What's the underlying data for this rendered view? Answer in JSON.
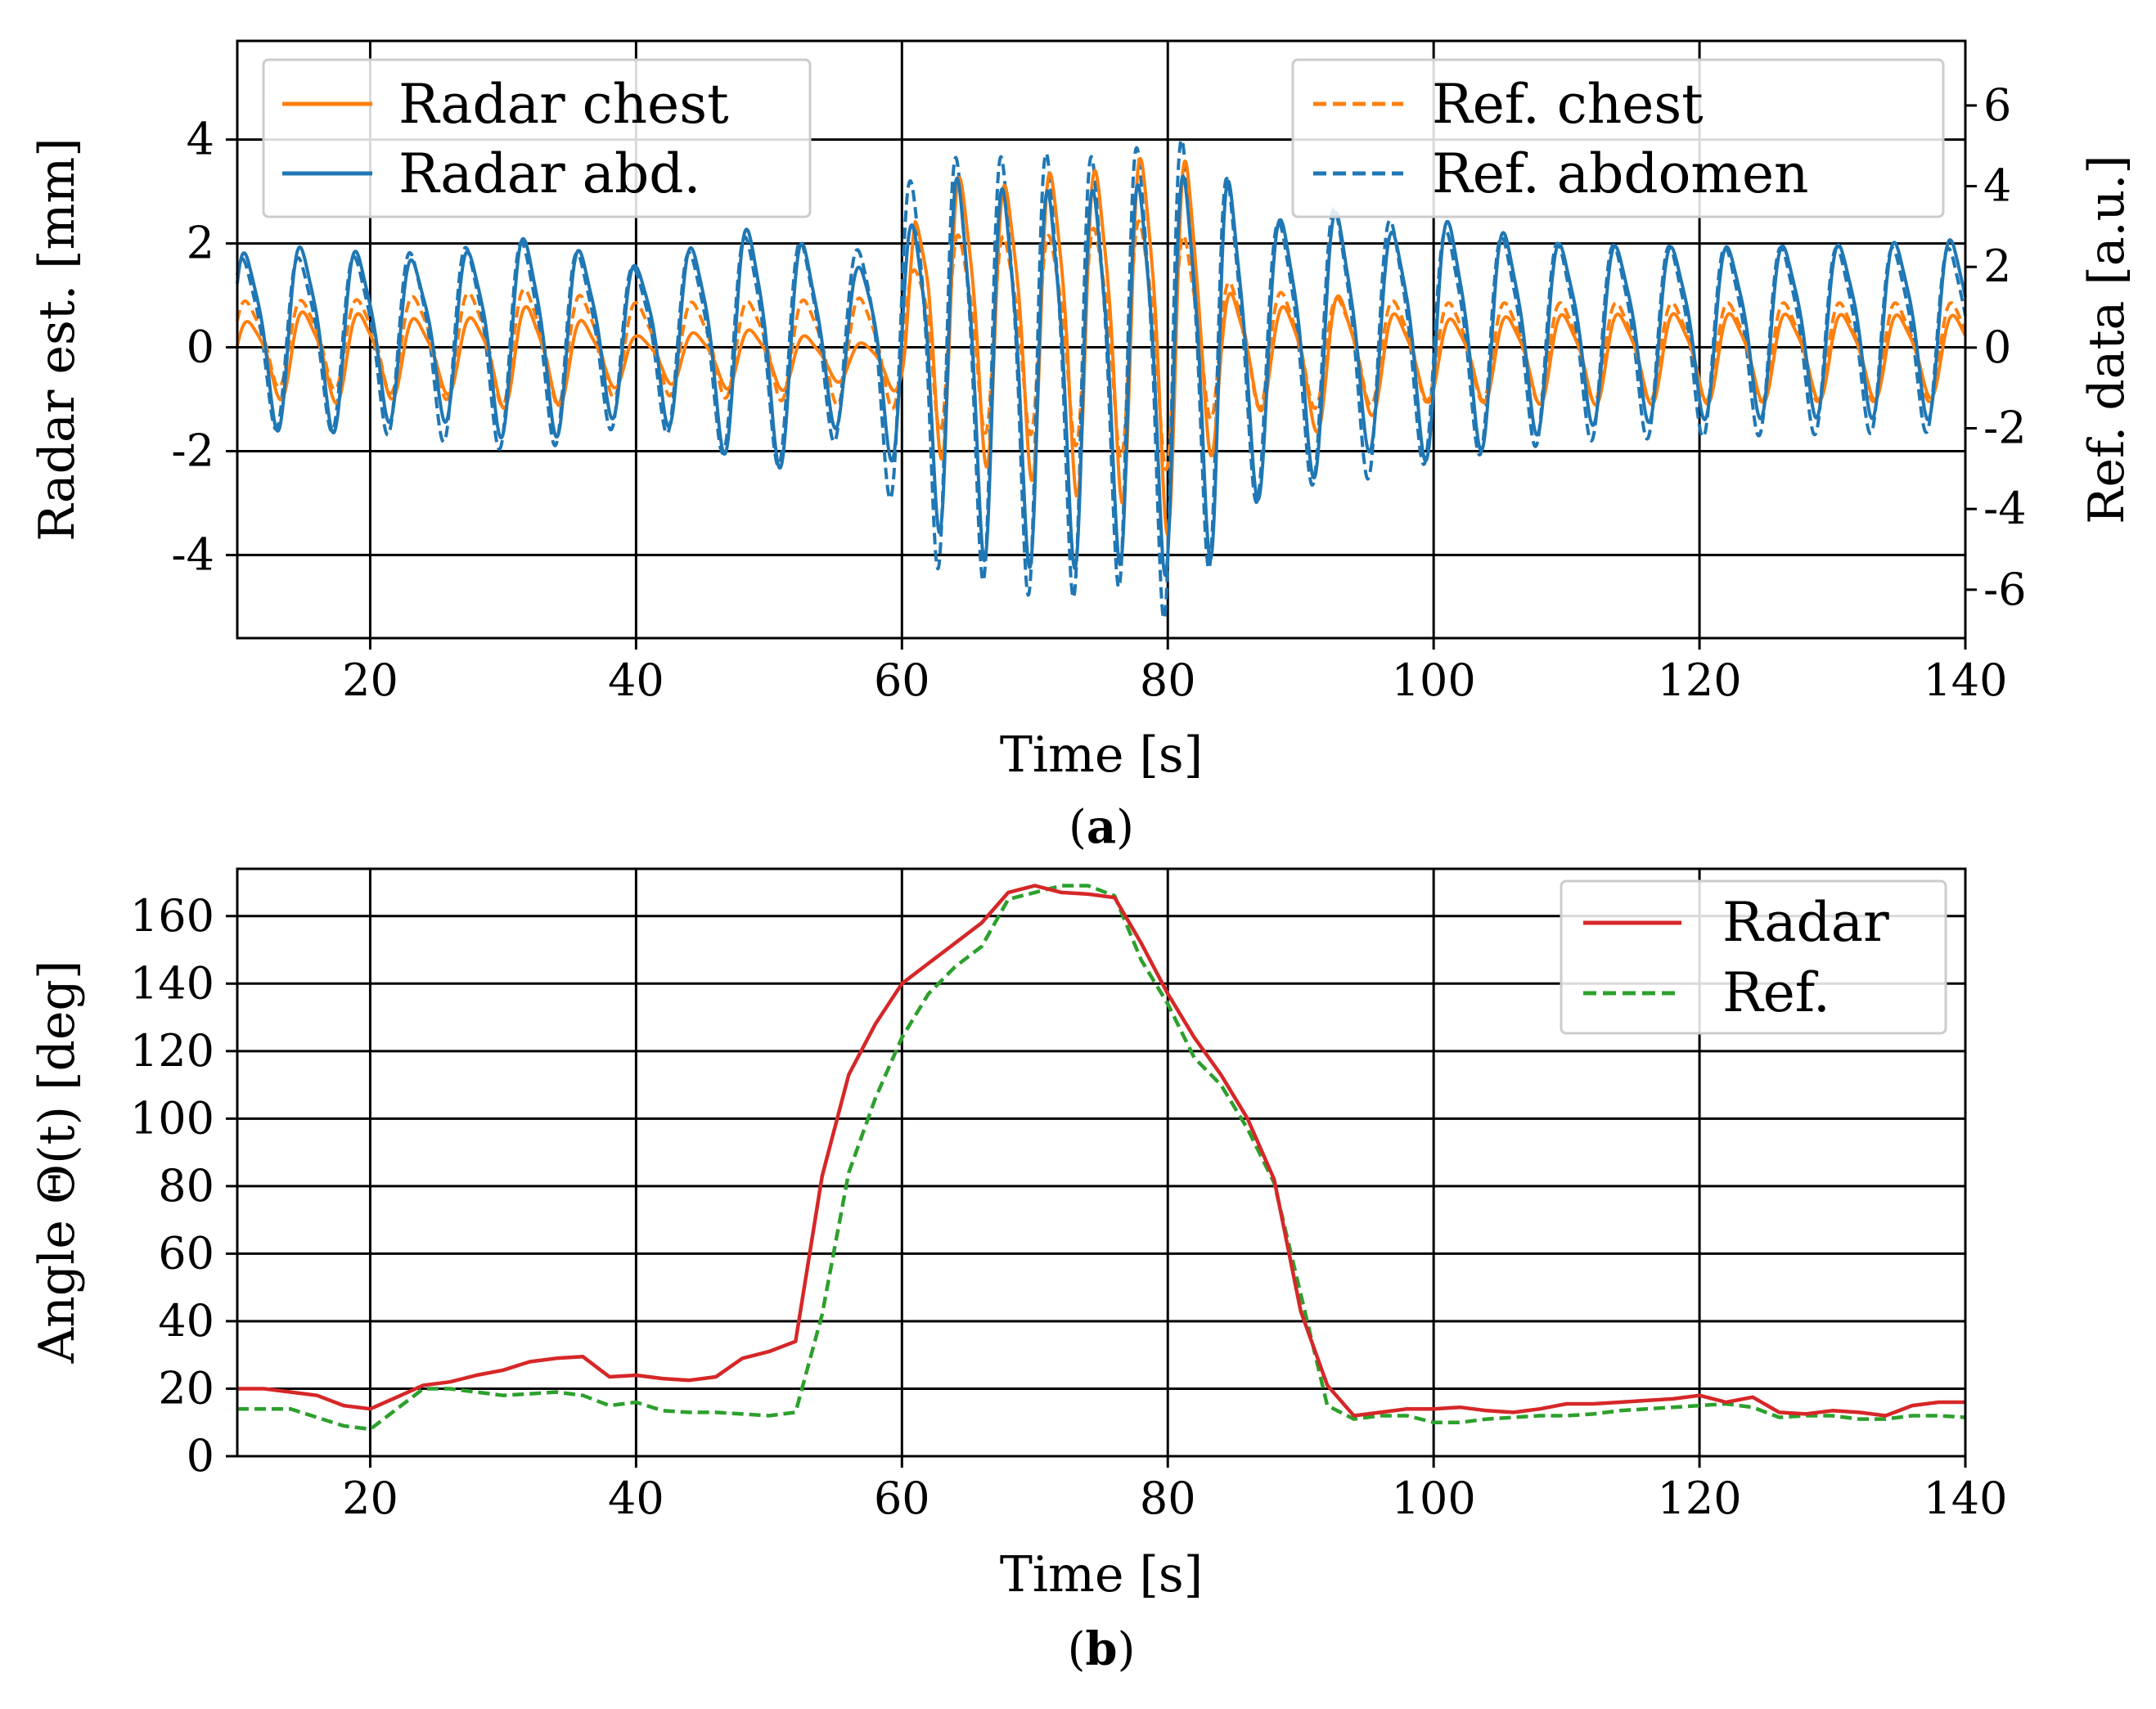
{
  "colors": {
    "orange": "#ff7f0e",
    "blue": "#1f77b4",
    "red": "#d62728",
    "green": "#2ca02c"
  },
  "chart_data": [
    {
      "type": "line",
      "caption_letter": "a",
      "xlabel": "Time [s]",
      "ylabel_left": "Radar est. [mm]",
      "ylabel_right": "Ref. data [a.u.]",
      "xlim": [
        10,
        140
      ],
      "ylim_left": [
        -5.6,
        5.9
      ],
      "ylim_right": [
        -7.2,
        7.6
      ],
      "x_ticks": [
        20,
        40,
        60,
        80,
        100,
        120,
        140
      ],
      "y_ticks_left": [
        -4,
        -2,
        0,
        2,
        4
      ],
      "y_ticks_left_labels": [
        "-4",
        "-2",
        "0",
        "2",
        "4"
      ],
      "y_ticks_right": [
        -6,
        -4,
        -2,
        0,
        2,
        4,
        6
      ],
      "y_ticks_right_labels": [
        "-6",
        "-4",
        "-2",
        "0",
        "2",
        "4",
        "6"
      ],
      "grid": true,
      "legend_left": [
        "Radar chest",
        "Radar abd."
      ],
      "legend_right": [
        "Ref. chest",
        "Ref. abdomen"
      ],
      "breath_period_s": [
        [
          10,
          4.2
        ],
        [
          58,
          4.2
        ],
        [
          62,
          3.4
        ],
        [
          84,
          3.4
        ],
        [
          88,
          4.2
        ],
        [
          140,
          4.2
        ]
      ],
      "series": [
        {
          "name": "Radar chest",
          "axis": "left",
          "color": "orange",
          "dash": "solid",
          "phase": 0.0,
          "envelope": [
            [
              10,
              0.7
            ],
            [
              14,
              1.0
            ],
            [
              18,
              1.0
            ],
            [
              26,
              0.8
            ],
            [
              32,
              1.2
            ],
            [
              40,
              0.5
            ],
            [
              50,
              0.7
            ],
            [
              56,
              0.4
            ],
            [
              60,
              0.6
            ],
            [
              61,
              2.8
            ],
            [
              64,
              3.2
            ],
            [
              68,
              3.1
            ],
            [
              72,
              3.6
            ],
            [
              76,
              3.6
            ],
            [
              80,
              4.3
            ],
            [
              82,
              4.0
            ],
            [
              84,
              1.4
            ],
            [
              88,
              1.1
            ],
            [
              92,
              1.6
            ],
            [
              96,
              1.1
            ],
            [
              100,
              0.9
            ],
            [
              110,
              1.0
            ],
            [
              120,
              1.0
            ],
            [
              140,
              0.9
            ]
          ],
          "center": [
            [
              10,
              -0.1
            ],
            [
              50,
              -0.2
            ],
            [
              60,
              -0.3
            ],
            [
              62,
              0.8
            ],
            [
              70,
              0.6
            ],
            [
              80,
              0.5
            ],
            [
              84,
              0.0
            ],
            [
              90,
              -0.2
            ],
            [
              140,
              -0.1
            ]
          ]
        },
        {
          "name": "Radar abd.",
          "axis": "left",
          "color": "blue",
          "dash": "solid",
          "phase": 0.05,
          "envelope": [
            [
              10,
              1.9
            ],
            [
              16,
              2.1
            ],
            [
              24,
              1.7
            ],
            [
              32,
              2.3
            ],
            [
              40,
              1.6
            ],
            [
              50,
              2.8
            ],
            [
              56,
              1.6
            ],
            [
              60,
              2.6
            ],
            [
              64,
              4.2
            ],
            [
              68,
              4.1
            ],
            [
              72,
              4.2
            ],
            [
              76,
              4.1
            ],
            [
              80,
              4.4
            ],
            [
              84,
              4.2
            ],
            [
              88,
              2.8
            ],
            [
              92,
              3.0
            ],
            [
              96,
              2.3
            ],
            [
              100,
              2.7
            ],
            [
              110,
              2.0
            ],
            [
              120,
              1.9
            ],
            [
              130,
              1.9
            ],
            [
              140,
              2.0
            ]
          ],
          "center": [
            [
              10,
              0.3
            ],
            [
              40,
              0.3
            ],
            [
              60,
              0.1
            ],
            [
              70,
              -0.3
            ],
            [
              80,
              -0.2
            ],
            [
              90,
              0.3
            ],
            [
              140,
              0.5
            ]
          ]
        },
        {
          "name": "Ref. chest",
          "axis": "right",
          "color": "orange",
          "dash": "dashed",
          "phase": 0.03,
          "envelope": [
            [
              10,
              1.2
            ],
            [
              20,
              1.3
            ],
            [
              32,
              1.7
            ],
            [
              40,
              1.3
            ],
            [
              50,
              1.4
            ],
            [
              60,
              1.6
            ],
            [
              62,
              2.8
            ],
            [
              70,
              2.8
            ],
            [
              80,
              3.6
            ],
            [
              84,
              1.8
            ],
            [
              90,
              1.6
            ],
            [
              100,
              1.4
            ],
            [
              140,
              1.4
            ]
          ],
          "center": [
            [
              10,
              0.2
            ],
            [
              60,
              0.0
            ],
            [
              62,
              0.6
            ],
            [
              80,
              0.4
            ],
            [
              90,
              0.0
            ],
            [
              140,
              0.0
            ]
          ]
        },
        {
          "name": "Ref. abdomen",
          "axis": "right",
          "color": "blue",
          "dash": "dashed",
          "phase": 0.08,
          "envelope": [
            [
              10,
              2.4
            ],
            [
              20,
              2.5
            ],
            [
              32,
              3.0
            ],
            [
              40,
              2.2
            ],
            [
              50,
              3.4
            ],
            [
              56,
              2.5
            ],
            [
              58,
              3.5
            ],
            [
              62,
              5.8
            ],
            [
              66,
              6.0
            ],
            [
              72,
              6.4
            ],
            [
              76,
              6.0
            ],
            [
              80,
              7.0
            ],
            [
              84,
              5.4
            ],
            [
              88,
              3.6
            ],
            [
              92,
              4.0
            ],
            [
              100,
              3.3
            ],
            [
              110,
              2.8
            ],
            [
              120,
              2.7
            ],
            [
              140,
              2.6
            ]
          ],
          "center": [
            [
              10,
              0.3
            ],
            [
              60,
              0.2
            ],
            [
              70,
              -0.2
            ],
            [
              80,
              -0.1
            ],
            [
              90,
              0.3
            ],
            [
              140,
              0.4
            ]
          ]
        }
      ]
    },
    {
      "type": "line",
      "caption_letter": "b",
      "xlabel": "Time [s]",
      "ylabel": "Angle Θ(t) [deg]",
      "xlim": [
        10,
        140
      ],
      "ylim": [
        0,
        174
      ],
      "x_ticks": [
        20,
        40,
        60,
        80,
        100,
        120,
        140
      ],
      "y_ticks": [
        0,
        20,
        40,
        60,
        80,
        100,
        120,
        140,
        160
      ],
      "y_tick_labels": [
        "0",
        "20",
        "40",
        "60",
        "80",
        "100",
        "120",
        "140",
        "160"
      ],
      "grid": true,
      "legend": [
        "Radar",
        "Ref."
      ],
      "series": [
        {
          "name": "Radar",
          "color": "red",
          "dash": "solid",
          "x": [
            10,
            12,
            16,
            18,
            20,
            22,
            24,
            26,
            28,
            30,
            32,
            34,
            36,
            38,
            40,
            42,
            44,
            46,
            48,
            50,
            52,
            54,
            56,
            58,
            60,
            62,
            64,
            66,
            68,
            70,
            72,
            74,
            76,
            78,
            80,
            82,
            84,
            86,
            88,
            90,
            92,
            94,
            96,
            98,
            100,
            102,
            104,
            106,
            108,
            110,
            112,
            114,
            116,
            118,
            120,
            122,
            124,
            126,
            128,
            130,
            132,
            134,
            136,
            138,
            140
          ],
          "y": [
            20,
            20,
            18,
            15,
            14,
            17.5,
            21,
            22,
            24,
            25.5,
            28,
            29,
            29.5,
            23.5,
            24,
            23,
            22.5,
            23.5,
            29,
            31,
            34,
            83,
            113,
            128,
            140,
            146,
            152,
            158,
            167,
            169,
            167,
            166.5,
            165.5,
            152,
            137,
            124,
            113,
            100,
            82,
            43,
            21,
            12,
            13,
            14,
            14,
            14.5,
            13.5,
            13,
            14,
            15.5,
            15.5,
            16,
            16.5,
            17,
            18,
            16,
            17.5,
            13,
            12.5,
            13.5,
            13,
            12,
            15,
            16,
            16
          ]
        },
        {
          "name": "Ref.",
          "color": "green",
          "dash": "dashed",
          "x": [
            10,
            14,
            18,
            20,
            22,
            24,
            26,
            28,
            30,
            32,
            34,
            36,
            38,
            40,
            42,
            44,
            46,
            48,
            50,
            52,
            54,
            56,
            58,
            60,
            62,
            64,
            66,
            68,
            70,
            72,
            74,
            76,
            78,
            80,
            82,
            84,
            86,
            88,
            90,
            92,
            94,
            96,
            98,
            100,
            102,
            104,
            106,
            108,
            110,
            112,
            114,
            116,
            118,
            120,
            122,
            124,
            126,
            128,
            130,
            132,
            134,
            136,
            138,
            140
          ],
          "y": [
            14,
            14,
            9,
            8,
            14,
            20,
            20,
            19,
            18,
            18.5,
            19,
            18,
            15,
            16,
            13.5,
            13,
            13,
            12.5,
            12,
            13,
            42,
            84,
            106,
            124,
            137,
            145,
            151,
            165,
            167,
            169,
            169,
            166,
            147,
            134,
            118,
            110,
            97,
            81,
            48,
            15,
            11,
            12,
            12,
            10,
            10,
            11,
            11.5,
            12,
            12,
            12.5,
            13.5,
            14,
            14.5,
            15,
            15.5,
            14.5,
            11.5,
            12,
            12,
            11,
            11,
            12,
            12,
            11.5
          ]
        }
      ]
    }
  ]
}
